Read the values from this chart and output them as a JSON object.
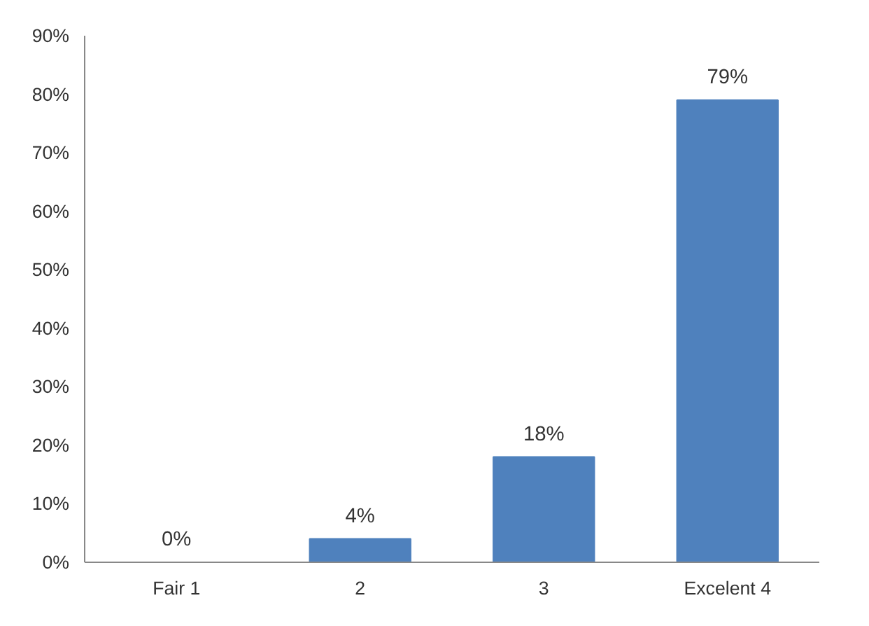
{
  "chart_data": {
    "type": "bar",
    "categories": [
      "Fair 1",
      "2",
      "3",
      "Excelent 4"
    ],
    "values": [
      0,
      4,
      18,
      79
    ],
    "value_labels": [
      "0%",
      "4%",
      "18%",
      "79%"
    ],
    "color": "#4f81bd",
    "ylim": [
      0,
      90
    ],
    "yticks": [
      {
        "value": 0,
        "label": "0%"
      },
      {
        "value": 10,
        "label": "10%"
      },
      {
        "value": 20,
        "label": "20%"
      },
      {
        "value": 30,
        "label": "30%"
      },
      {
        "value": 40,
        "label": "40%"
      },
      {
        "value": 50,
        "label": "50%"
      },
      {
        "value": 60,
        "label": "60%"
      },
      {
        "value": 70,
        "label": "70%"
      },
      {
        "value": 80,
        "label": "80%"
      },
      {
        "value": 90,
        "label": "90%"
      }
    ],
    "grid": false
  }
}
